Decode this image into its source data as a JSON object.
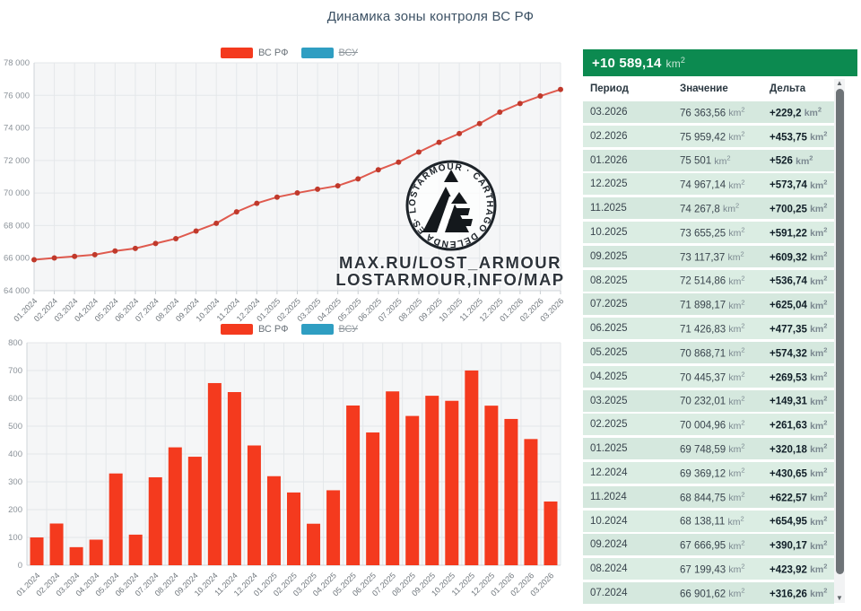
{
  "title": "Динамика зоны контроля ВС РФ",
  "legend": {
    "rf": "ВС РФ",
    "vsu": "ВСУ"
  },
  "units": {
    "label": "km",
    "sup": "2"
  },
  "colors": {
    "bar": "#f43a1e",
    "line": "#df5a4e",
    "point": "#c0392b",
    "legend_blue": "#2f9ec2",
    "banner_green": "#0c8a50",
    "row_bg": "#d5e8de",
    "grid": "#e4e7ea",
    "plot_bg": "#f5f6f7"
  },
  "chart_data": [
    {
      "type": "line",
      "series_name": "ВС РФ",
      "categories": [
        "01.2024",
        "02.2024",
        "03.2024",
        "04.2024",
        "05.2024",
        "06.2024",
        "07.2024",
        "08.2024",
        "09.2024",
        "10.2024",
        "11.2024",
        "12.2024",
        "01.2025",
        "02.2025",
        "03.2025",
        "04.2025",
        "05.2025",
        "06.2025",
        "07.2025",
        "08.2025",
        "09.2025",
        "10.2025",
        "11.2025",
        "12.2025",
        "01.2026",
        "02.2026",
        "03.2026"
      ],
      "values": [
        65900,
        66010,
        66110,
        66210,
        66440,
        66600,
        66901.62,
        67199.43,
        67666.95,
        68138.11,
        68844.75,
        69369.12,
        69748.59,
        70004.96,
        70232.01,
        70445.37,
        70868.71,
        71426.83,
        71898.17,
        72514.86,
        73117.37,
        73655.25,
        74267.8,
        74967.14,
        75501,
        75959.42,
        76363.56
      ],
      "ylim": [
        64000,
        78000
      ],
      "ytick_labels": [
        "64 000",
        "66 000",
        "68 000",
        "70 000",
        "72 000",
        "74 000",
        "76 000",
        "78 000"
      ],
      "ytick_values": [
        64000,
        66000,
        68000,
        70000,
        72000,
        74000,
        76000,
        78000
      ],
      "grid": true,
      "legend_position": "top-center",
      "hidden_series": [
        "ВСУ"
      ]
    },
    {
      "type": "bar",
      "series_name": "ВС РФ",
      "categories": [
        "01.2024",
        "02.2024",
        "03.2024",
        "04.2024",
        "05.2024",
        "06.2024",
        "07.2024",
        "08.2024",
        "09.2024",
        "10.2024",
        "11.2024",
        "12.2024",
        "01.2025",
        "02.2025",
        "03.2025",
        "04.2025",
        "05.2025",
        "06.2025",
        "07.2025",
        "08.2025",
        "09.2025",
        "10.2025",
        "11.2025",
        "12.2025",
        "01.2026",
        "02.2026",
        "03.2026"
      ],
      "values": [
        100,
        150,
        65,
        92,
        330,
        110,
        316.26,
        423.92,
        390.17,
        654.95,
        622.57,
        430.65,
        320.18,
        261.63,
        149.31,
        269.53,
        574.32,
        477.35,
        625.04,
        536.74,
        609.32,
        591.22,
        700.25,
        573.74,
        526,
        453.75,
        229.2
      ],
      "ylim": [
        0,
        800
      ],
      "ytick_labels": [
        "0",
        "100",
        "200",
        "300",
        "400",
        "500",
        "600",
        "700",
        "800"
      ],
      "ytick_values": [
        0,
        100,
        200,
        300,
        400,
        500,
        600,
        700,
        800
      ],
      "grid": true,
      "legend_position": "top-center",
      "hidden_series": [
        "ВСУ"
      ]
    }
  ],
  "table": {
    "total": "+10 589,14",
    "columns": [
      "Период",
      "Значение",
      "Дельта"
    ],
    "rows": [
      {
        "period": "03.2026",
        "value": "76 363,56",
        "delta": "+229,2"
      },
      {
        "period": "02.2026",
        "value": "75 959,42",
        "delta": "+453,75"
      },
      {
        "period": "01.2026",
        "value": "75 501",
        "delta": "+526"
      },
      {
        "period": "12.2025",
        "value": "74 967,14",
        "delta": "+573,74"
      },
      {
        "period": "11.2025",
        "value": "74 267,8",
        "delta": "+700,25"
      },
      {
        "period": "10.2025",
        "value": "73 655,25",
        "delta": "+591,22"
      },
      {
        "period": "09.2025",
        "value": "73 117,37",
        "delta": "+609,32"
      },
      {
        "period": "08.2025",
        "value": "72 514,86",
        "delta": "+536,74"
      },
      {
        "period": "07.2025",
        "value": "71 898,17",
        "delta": "+625,04"
      },
      {
        "period": "06.2025",
        "value": "71 426,83",
        "delta": "+477,35"
      },
      {
        "period": "05.2025",
        "value": "70 868,71",
        "delta": "+574,32"
      },
      {
        "period": "04.2025",
        "value": "70 445,37",
        "delta": "+269,53"
      },
      {
        "period": "03.2025",
        "value": "70 232,01",
        "delta": "+149,31"
      },
      {
        "period": "02.2025",
        "value": "70 004,96",
        "delta": "+261,63"
      },
      {
        "period": "01.2025",
        "value": "69 748,59",
        "delta": "+320,18"
      },
      {
        "period": "12.2024",
        "value": "69 369,12",
        "delta": "+430,65"
      },
      {
        "period": "11.2024",
        "value": "68 844,75",
        "delta": "+622,57"
      },
      {
        "period": "10.2024",
        "value": "68 138,11",
        "delta": "+654,95"
      },
      {
        "period": "09.2024",
        "value": "67 666,95",
        "delta": "+390,17"
      },
      {
        "period": "08.2024",
        "value": "67 199,43",
        "delta": "+423,92"
      },
      {
        "period": "07.2024",
        "value": "66 901,62",
        "delta": "+316,26"
      }
    ]
  },
  "scrollbar": {
    "up": "▲",
    "down": "▼"
  },
  "watermark": {
    "ring_text": "· LOSTARMOUR · CARTHAGO DELENDA EST",
    "line1": "MAX.RU/LOST_ARMOUR",
    "line2": "LOSTARMOUR,INFO/MAP"
  }
}
